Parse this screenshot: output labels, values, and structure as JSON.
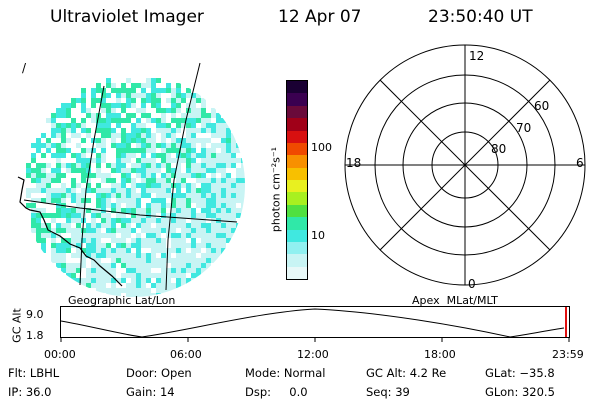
{
  "header": {
    "instrument": "Ultraviolet Imager",
    "date": "12 Apr 07",
    "time": "23:50:40 UT"
  },
  "colorbar": {
    "unit_label": "photon cm⁻²s⁻¹",
    "tick_100": "100",
    "tick_10": "10",
    "colors_top_to_bottom": [
      "#1a0033",
      "#3a0050",
      "#6a0a3a",
      "#a00018",
      "#d81010",
      "#f04a00",
      "#f89000",
      "#f8c000",
      "#e8f020",
      "#a8f020",
      "#50e040",
      "#30e8a8",
      "#40e8e0",
      "#90f0f0",
      "#c8f4f4",
      "#e8f8f8"
    ]
  },
  "geo_panel": {
    "label": "Geographic Lat/Lon",
    "corner_mark": "/"
  },
  "polar_panel": {
    "label": "Apex  MLat/MLT",
    "mlt_12": "12",
    "mlt_18": "18",
    "mlt_6": "6",
    "mlt_0": "0",
    "lat_60": "60",
    "lat_70": "70",
    "lat_80": "80"
  },
  "altitude_plot": {
    "ylabel": "GC Alt",
    "y_top": "9.0",
    "y_bottom": "1.8",
    "x_ticks": [
      "00:00",
      "06:00",
      "12:00",
      "18:00",
      "23:59"
    ]
  },
  "status": {
    "flt": "Flt: LBHL",
    "door": "Door: Open",
    "mode": "Mode: Normal",
    "gc_alt": "GC Alt: 4.2 Re",
    "glat": "GLat: −35.8",
    "ip": "IP: 36.0",
    "gain": "Gain: 14",
    "dsp": "Dsp:     0.0",
    "seq": "Seq: 39",
    "glon": "GLon: 320.5"
  },
  "colors": {
    "emission_bright": "#30e8a8",
    "emission_mid": "#40e8e0",
    "emission_low": "#c8f4f4",
    "marker_red": "#e01010"
  }
}
